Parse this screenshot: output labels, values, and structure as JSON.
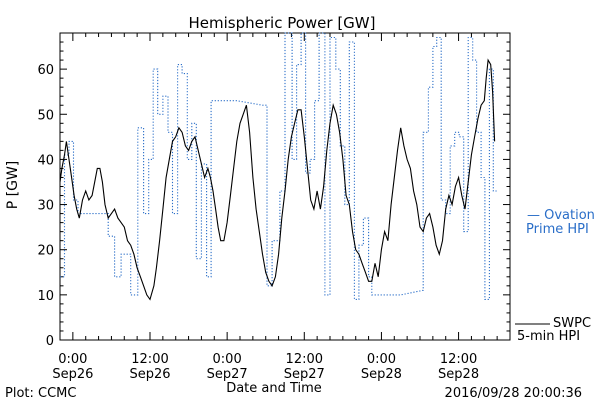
{
  "chart_data": {
    "type": "line",
    "title": "Hemispheric Power [GW]",
    "ylabel": "P [GW]",
    "xlabel": "Date and Time",
    "ylim": [
      0,
      68
    ],
    "yticks": [
      0,
      10,
      20,
      30,
      40,
      50,
      60
    ],
    "x_unit": "hours since 2016-09-25 22:00",
    "xlim": [
      0,
      70
    ],
    "xticks": [
      {
        "x": 2,
        "time": "0:00",
        "date": "Sep26"
      },
      {
        "x": 14,
        "time": "12:00",
        "date": "Sep26"
      },
      {
        "x": 26,
        "time": "0:00",
        "date": "Sep27"
      },
      {
        "x": 38,
        "time": "12:00",
        "date": "Sep27"
      },
      {
        "x": 50,
        "time": "0:00",
        "date": "Sep28"
      },
      {
        "x": 62,
        "time": "12:00",
        "date": "Sep28"
      }
    ],
    "grid": false,
    "series": [
      {
        "name": "SWPC 5-min HPI",
        "color": "#000000",
        "style": "solid",
        "points": [
          [
            0,
            35
          ],
          [
            0.3,
            38
          ],
          [
            0.7,
            41
          ],
          [
            1,
            44
          ],
          [
            1.4,
            40
          ],
          [
            1.8,
            36
          ],
          [
            2.2,
            32
          ],
          [
            2.6,
            29
          ],
          [
            3,
            27
          ],
          [
            3.5,
            31
          ],
          [
            4,
            33
          ],
          [
            4.5,
            31
          ],
          [
            5,
            32
          ],
          [
            5.4,
            35
          ],
          [
            5.8,
            38
          ],
          [
            6.2,
            38
          ],
          [
            6.6,
            35
          ],
          [
            7,
            30
          ],
          [
            7.5,
            27
          ],
          [
            8,
            28
          ],
          [
            8.5,
            29
          ],
          [
            9,
            27
          ],
          [
            9.5,
            26
          ],
          [
            10,
            25
          ],
          [
            10.5,
            22
          ],
          [
            11,
            21
          ],
          [
            11.5,
            19
          ],
          [
            12,
            16
          ],
          [
            12.5,
            14
          ],
          [
            13,
            12
          ],
          [
            13.5,
            10
          ],
          [
            14,
            9
          ],
          [
            14.6,
            12
          ],
          [
            15,
            16
          ],
          [
            15.5,
            22
          ],
          [
            16,
            29
          ],
          [
            16.5,
            36
          ],
          [
            17,
            40
          ],
          [
            17.5,
            44
          ],
          [
            18,
            45
          ],
          [
            18.5,
            47
          ],
          [
            19,
            46
          ],
          [
            19.5,
            43
          ],
          [
            20,
            42
          ],
          [
            20.5,
            44
          ],
          [
            21,
            45
          ],
          [
            21.5,
            42
          ],
          [
            22,
            39
          ],
          [
            22.5,
            36
          ],
          [
            23,
            38
          ],
          [
            23.4,
            36
          ],
          [
            23.8,
            33
          ],
          [
            24.2,
            29
          ],
          [
            24.6,
            25
          ],
          [
            25,
            22
          ],
          [
            25.5,
            22
          ],
          [
            26,
            26
          ],
          [
            26.5,
            32
          ],
          [
            27,
            38
          ],
          [
            27.5,
            44
          ],
          [
            28,
            48
          ],
          [
            28.5,
            50
          ],
          [
            29,
            52
          ],
          [
            29.5,
            46
          ],
          [
            30,
            36
          ],
          [
            30.5,
            29
          ],
          [
            31,
            24
          ],
          [
            31.5,
            19
          ],
          [
            32,
            15
          ],
          [
            32.5,
            13
          ],
          [
            33,
            12
          ],
          [
            33.5,
            14
          ],
          [
            34,
            19
          ],
          [
            34.5,
            27
          ],
          [
            35,
            33
          ],
          [
            35.5,
            40
          ],
          [
            36,
            45
          ],
          [
            36.5,
            48
          ],
          [
            37,
            51
          ],
          [
            37.5,
            51
          ],
          [
            38,
            45
          ],
          [
            38.5,
            38
          ],
          [
            39,
            31
          ],
          [
            39.5,
            29
          ],
          [
            40,
            33
          ],
          [
            40.5,
            29
          ],
          [
            41,
            34
          ],
          [
            41.5,
            42
          ],
          [
            42,
            48
          ],
          [
            42.5,
            52
          ],
          [
            43,
            50
          ],
          [
            43.5,
            46
          ],
          [
            44,
            40
          ],
          [
            44.5,
            32
          ],
          [
            45,
            30
          ],
          [
            45.5,
            24
          ],
          [
            46,
            20
          ],
          [
            46.5,
            19
          ],
          [
            47,
            17
          ],
          [
            47.5,
            15
          ],
          [
            48,
            13
          ],
          [
            48.5,
            13
          ],
          [
            49,
            17
          ],
          [
            49.5,
            14
          ],
          [
            50,
            20
          ],
          [
            50.5,
            24
          ],
          [
            51,
            22
          ],
          [
            51.5,
            30
          ],
          [
            52,
            36
          ],
          [
            52.5,
            42
          ],
          [
            53,
            47
          ],
          [
            53.5,
            43
          ],
          [
            54,
            40
          ],
          [
            54.5,
            38
          ],
          [
            55,
            33
          ],
          [
            55.5,
            30
          ],
          [
            56,
            25
          ],
          [
            56.5,
            24
          ],
          [
            57,
            27
          ],
          [
            57.5,
            28
          ],
          [
            58,
            25
          ],
          [
            58.5,
            21
          ],
          [
            59,
            19
          ],
          [
            59.5,
            22
          ],
          [
            60,
            29
          ],
          [
            60.5,
            32
          ],
          [
            61,
            30
          ],
          [
            61.5,
            34
          ],
          [
            62,
            36
          ],
          [
            62.5,
            32
          ],
          [
            63,
            29
          ],
          [
            63.5,
            35
          ],
          [
            64,
            41
          ],
          [
            64.5,
            45
          ],
          [
            65,
            49
          ],
          [
            65.5,
            52
          ],
          [
            66,
            53
          ],
          [
            66.3,
            58
          ],
          [
            66.6,
            62
          ],
          [
            67,
            61
          ],
          [
            67.3,
            55
          ],
          [
            67.6,
            44
          ]
        ]
      },
      {
        "name": "Ovation Prime HPI",
        "color": "#2a6ec8",
        "style": "dotted",
        "points": [
          [
            0,
            14
          ],
          [
            0.7,
            14
          ],
          [
            0.7,
            41
          ],
          [
            1.4,
            41
          ],
          [
            1.4,
            44
          ],
          [
            2.1,
            44
          ],
          [
            2.1,
            31
          ],
          [
            2.8,
            31
          ],
          [
            2.8,
            28
          ],
          [
            7.5,
            28
          ],
          [
            7.5,
            23
          ],
          [
            8.5,
            23
          ],
          [
            8.5,
            14
          ],
          [
            9.5,
            14
          ],
          [
            9.5,
            19
          ],
          [
            11,
            19
          ],
          [
            11,
            10
          ],
          [
            12.1,
            10
          ],
          [
            12.1,
            47
          ],
          [
            13,
            47
          ],
          [
            13,
            28
          ],
          [
            13.8,
            28
          ],
          [
            13.8,
            40
          ],
          [
            14.5,
            40
          ],
          [
            14.5,
            60
          ],
          [
            15.2,
            60
          ],
          [
            15.2,
            50
          ],
          [
            16,
            50
          ],
          [
            16,
            54
          ],
          [
            16.8,
            54
          ],
          [
            16.8,
            46
          ],
          [
            17.5,
            46
          ],
          [
            17.5,
            28
          ],
          [
            18.3,
            28
          ],
          [
            18.3,
            61
          ],
          [
            19,
            61
          ],
          [
            19,
            59
          ],
          [
            19.8,
            59
          ],
          [
            19.8,
            40
          ],
          [
            20.5,
            40
          ],
          [
            20.5,
            48
          ],
          [
            21.2,
            48
          ],
          [
            21.2,
            18
          ],
          [
            22,
            18
          ],
          [
            22,
            39
          ],
          [
            22.8,
            39
          ],
          [
            22.8,
            14
          ],
          [
            23.5,
            14
          ],
          [
            23.5,
            53
          ],
          [
            27.5,
            53
          ],
          [
            31.5,
            52
          ],
          [
            32.2,
            52
          ],
          [
            32.2,
            12
          ],
          [
            33,
            12
          ],
          [
            33,
            22
          ],
          [
            34.2,
            22
          ],
          [
            34.2,
            33
          ],
          [
            35,
            33
          ],
          [
            35,
            68
          ],
          [
            36.1,
            68
          ],
          [
            36.1,
            40
          ],
          [
            36.8,
            40
          ],
          [
            36.8,
            61
          ],
          [
            37.5,
            61
          ],
          [
            37.5,
            68
          ],
          [
            38.2,
            68
          ],
          [
            38.2,
            37
          ],
          [
            38.9,
            37
          ],
          [
            38.9,
            40
          ],
          [
            39.6,
            40
          ],
          [
            39.6,
            53
          ],
          [
            40.3,
            53
          ],
          [
            40.3,
            68
          ],
          [
            41.2,
            68
          ],
          [
            41.2,
            10
          ],
          [
            42,
            10
          ],
          [
            42,
            67
          ],
          [
            42.9,
            67
          ],
          [
            42.9,
            60
          ],
          [
            43.6,
            60
          ],
          [
            43.6,
            43
          ],
          [
            44.3,
            43
          ],
          [
            44.3,
            30
          ],
          [
            45,
            30
          ],
          [
            45,
            66
          ],
          [
            45.8,
            66
          ],
          [
            45.8,
            9
          ],
          [
            46.5,
            9
          ],
          [
            46.5,
            21
          ],
          [
            47.2,
            21
          ],
          [
            47.2,
            27
          ],
          [
            48,
            27
          ],
          [
            48,
            14
          ],
          [
            48.5,
            14
          ],
          [
            48.5,
            10
          ],
          [
            53,
            10
          ],
          [
            56.5,
            11
          ],
          [
            56.5,
            46
          ],
          [
            57.3,
            46
          ],
          [
            57.3,
            56
          ],
          [
            58,
            56
          ],
          [
            58,
            65
          ],
          [
            58.6,
            65
          ],
          [
            58.6,
            67
          ],
          [
            59.3,
            67
          ],
          [
            59.3,
            31
          ],
          [
            60,
            31
          ],
          [
            60,
            28
          ],
          [
            60.7,
            28
          ],
          [
            60.7,
            43
          ],
          [
            61.4,
            43
          ],
          [
            61.4,
            46
          ],
          [
            62.1,
            46
          ],
          [
            62.1,
            45
          ],
          [
            62.8,
            45
          ],
          [
            62.8,
            24
          ],
          [
            63.5,
            24
          ],
          [
            63.5,
            67
          ],
          [
            64.2,
            67
          ],
          [
            64.2,
            62
          ],
          [
            64.8,
            62
          ],
          [
            64.8,
            46
          ],
          [
            65.5,
            46
          ],
          [
            65.5,
            36
          ],
          [
            66.1,
            36
          ],
          [
            66.1,
            9
          ],
          [
            66.8,
            9
          ],
          [
            66.8,
            60
          ],
          [
            67.4,
            60
          ],
          [
            67.4,
            33
          ],
          [
            68,
            33
          ]
        ]
      }
    ]
  },
  "legend": {
    "ovation_line1": "— Ovation",
    "ovation_line2": "Prime HPI",
    "swpc_line1": "SWPC",
    "swpc_line2": "5-min HPI"
  },
  "footer": {
    "left": "Plot: CCMC",
    "right": "2016/09/28 20:00:36"
  },
  "colors": {
    "ovation": "#2a6ec8",
    "swpc": "#000000",
    "axis": "#000000"
  }
}
